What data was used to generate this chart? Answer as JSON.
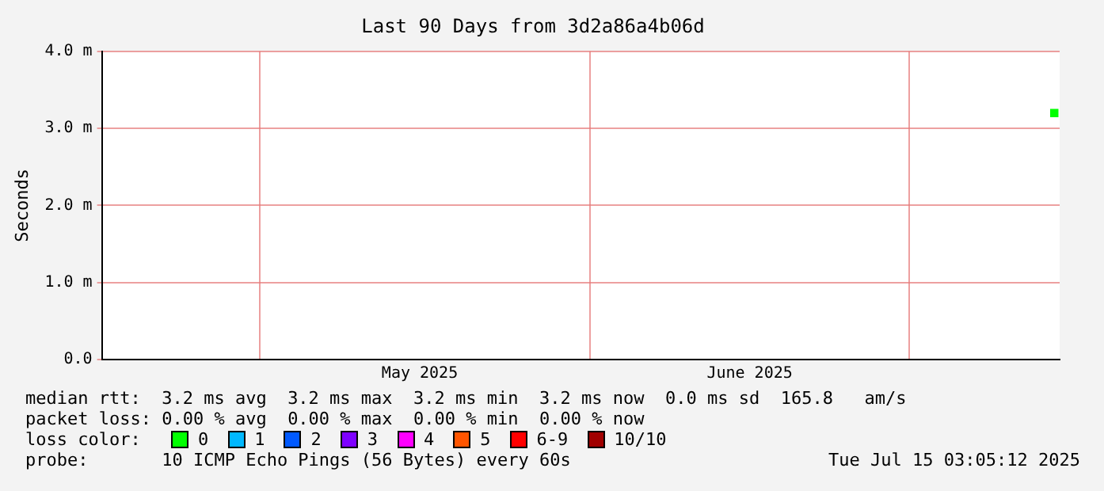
{
  "chart_data": {
    "type": "scatter",
    "title": "Last 90 Days from 3d2a86a4b06d",
    "ylabel": "Seconds",
    "x": [
      "2025-07-14T15:00"
    ],
    "series": [
      {
        "color": "#00ff00",
        "values": [
          3.2
        ]
      }
    ],
    "marker": "square",
    "xlim": [
      "2025-04-16T03:05",
      "2025-07-15T03:05"
    ],
    "xticks": [
      {
        "value": "2025-05-01",
        "label": null
      },
      {
        "value": "2025-05-16",
        "label": "May 2025"
      },
      {
        "value": "2025-06-01",
        "label": null
      },
      {
        "value": "2025-06-16",
        "label": "June 2025"
      },
      {
        "value": "2025-07-01",
        "label": null
      }
    ],
    "ylim": [
      0,
      4
    ],
    "yticks": [
      {
        "value": 0,
        "label": "0.0"
      },
      {
        "value": 1,
        "label": "1.0 m"
      },
      {
        "value": 2,
        "label": "2.0 m"
      },
      {
        "value": 3,
        "label": "3.0 m"
      },
      {
        "value": 4,
        "label": "4.0 m"
      }
    ],
    "grid": true,
    "legend": false,
    "annotations": [
      "median rtt:  3.2 ms avg  3.2 ms max  3.2 ms min  3.2 ms now  0.0 ms sd  165.8   am/s",
      "packet loss: 0.00 % avg  0.00 % max  0.00 % min  0.00 % now",
      "loss color:",
      "0",
      "1",
      "2",
      "3",
      "4",
      "5",
      "6-9",
      "10/10",
      "probe:       10 ICMP Echo Pings (56 Bytes) every 60s",
      "Tue Jul 15 03:05:12 2025"
    ]
  }
}
